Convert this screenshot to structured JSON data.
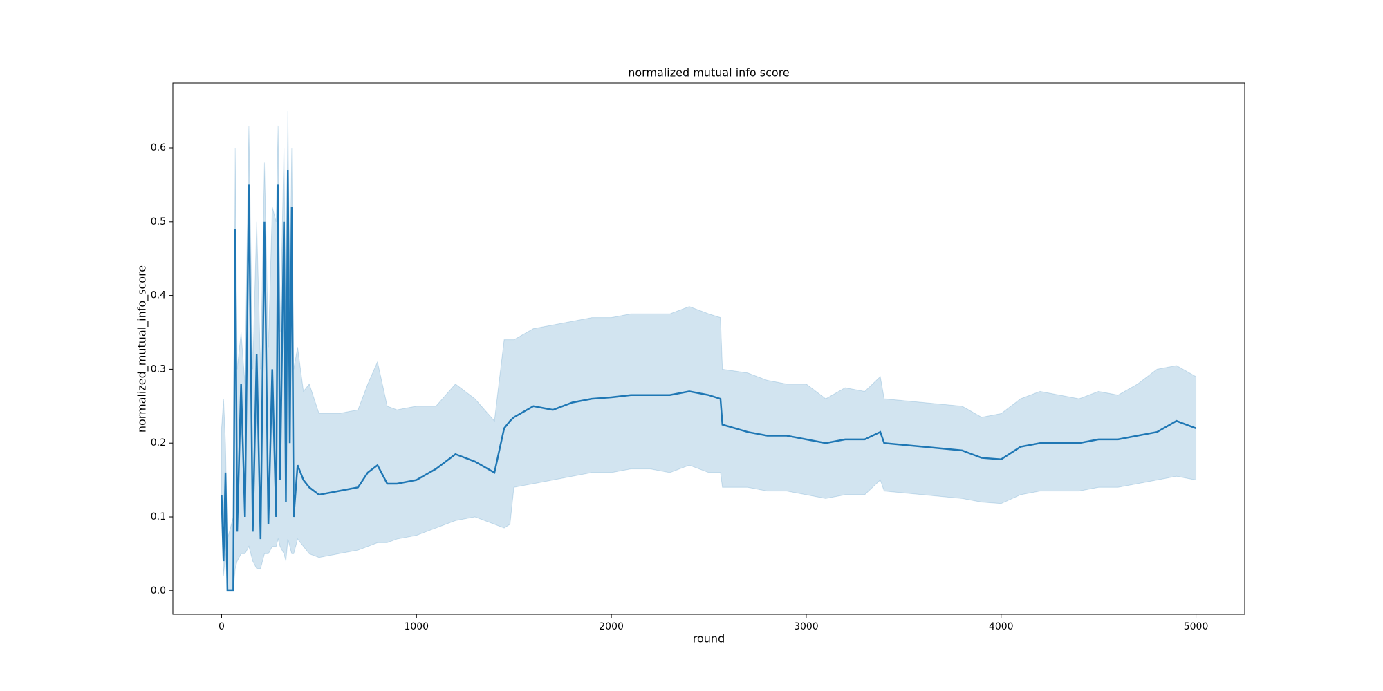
{
  "chart_data": {
    "type": "line",
    "title": "normalized mutual info score",
    "x_label": "round",
    "y_label": "normalized_mutual_info_score",
    "x": [
      0,
      10,
      20,
      30,
      60,
      70,
      80,
      100,
      120,
      140,
      160,
      180,
      200,
      220,
      240,
      260,
      280,
      290,
      300,
      320,
      330,
      340,
      350,
      360,
      370,
      390,
      420,
      450,
      500,
      600,
      700,
      750,
      800,
      850,
      900,
      1000,
      1100,
      1200,
      1300,
      1400,
      1450,
      1480,
      1500,
      1600,
      1700,
      1800,
      1900,
      2000,
      2100,
      2200,
      2300,
      2400,
      2500,
      2560,
      2570,
      2700,
      2800,
      2900,
      3000,
      3100,
      3200,
      3300,
      3380,
      3400,
      3600,
      3800,
      3900,
      4000,
      4100,
      4200,
      4300,
      4400,
      4500,
      4600,
      4700,
      4800,
      4900,
      5000
    ],
    "series": [
      {
        "name": "normalized_mutual_info_score",
        "color": "#1f77b4",
        "values": [
          0.13,
          0.04,
          0.16,
          0.0,
          0.0,
          0.49,
          0.08,
          0.28,
          0.1,
          0.55,
          0.08,
          0.32,
          0.07,
          0.5,
          0.09,
          0.3,
          0.1,
          0.55,
          0.15,
          0.5,
          0.12,
          0.57,
          0.2,
          0.52,
          0.1,
          0.17,
          0.15,
          0.14,
          0.13,
          0.135,
          0.14,
          0.16,
          0.17,
          0.145,
          0.145,
          0.15,
          0.165,
          0.185,
          0.175,
          0.16,
          0.22,
          0.23,
          0.235,
          0.25,
          0.245,
          0.255,
          0.26,
          0.262,
          0.265,
          0.265,
          0.265,
          0.27,
          0.265,
          0.26,
          0.225,
          0.215,
          0.21,
          0.21,
          0.205,
          0.2,
          0.205,
          0.205,
          0.215,
          0.2,
          0.195,
          0.19,
          0.18,
          0.178,
          0.195,
          0.2,
          0.2,
          0.2,
          0.205,
          0.205,
          0.21,
          0.215,
          0.23,
          0.22
        ],
        "lower": [
          0.1,
          0.02,
          0.05,
          0.0,
          0.0,
          0.03,
          0.04,
          0.05,
          0.05,
          0.06,
          0.04,
          0.03,
          0.03,
          0.05,
          0.05,
          0.06,
          0.06,
          0.07,
          0.06,
          0.05,
          0.04,
          0.07,
          0.06,
          0.05,
          0.05,
          0.07,
          0.06,
          0.05,
          0.045,
          0.05,
          0.055,
          0.06,
          0.065,
          0.065,
          0.07,
          0.075,
          0.085,
          0.095,
          0.1,
          0.09,
          0.085,
          0.09,
          0.14,
          0.145,
          0.15,
          0.155,
          0.16,
          0.16,
          0.165,
          0.165,
          0.16,
          0.17,
          0.16,
          0.16,
          0.14,
          0.14,
          0.135,
          0.135,
          0.13,
          0.125,
          0.13,
          0.13,
          0.15,
          0.135,
          0.13,
          0.125,
          0.12,
          0.118,
          0.13,
          0.135,
          0.135,
          0.135,
          0.14,
          0.14,
          0.145,
          0.15,
          0.155,
          0.15
        ],
        "upper": [
          0.22,
          0.26,
          0.2,
          0.07,
          0.1,
          0.6,
          0.3,
          0.35,
          0.28,
          0.63,
          0.3,
          0.5,
          0.3,
          0.58,
          0.33,
          0.52,
          0.5,
          0.63,
          0.35,
          0.6,
          0.35,
          0.65,
          0.4,
          0.6,
          0.3,
          0.33,
          0.27,
          0.28,
          0.24,
          0.24,
          0.245,
          0.28,
          0.31,
          0.25,
          0.245,
          0.25,
          0.25,
          0.28,
          0.26,
          0.23,
          0.34,
          0.34,
          0.34,
          0.355,
          0.36,
          0.365,
          0.37,
          0.37,
          0.375,
          0.375,
          0.375,
          0.385,
          0.375,
          0.37,
          0.3,
          0.295,
          0.285,
          0.28,
          0.28,
          0.26,
          0.275,
          0.27,
          0.29,
          0.26,
          0.255,
          0.25,
          0.235,
          0.24,
          0.26,
          0.27,
          0.265,
          0.26,
          0.27,
          0.265,
          0.28,
          0.3,
          0.305,
          0.29
        ]
      }
    ],
    "xlim": [
      -250,
      5250
    ],
    "ylim": [
      -0.032,
      0.688
    ],
    "xticks": [
      0,
      1000,
      2000,
      3000,
      4000,
      5000
    ],
    "yticks": [
      {
        "value": 0,
        "label": "0.0"
      },
      0.1,
      0.2,
      0.3,
      0.4,
      0.5,
      0.6
    ]
  }
}
